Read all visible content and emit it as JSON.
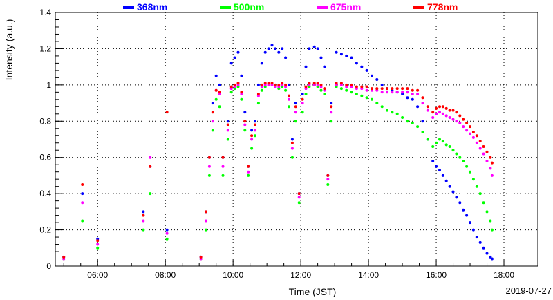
{
  "chart_data": {
    "type": "scatter",
    "title": "",
    "xlabel": "Time (JST)",
    "ylabel": "Intensity (a.u.)",
    "date": "2019-07-27",
    "x_unit": "hours (JST)",
    "xlim": [
      4.75,
      19.0
    ],
    "ylim": [
      0,
      1.4
    ],
    "grid": true,
    "legend_position": "top",
    "x_ticks": [
      6,
      8,
      10,
      12,
      14,
      16,
      18
    ],
    "x_tick_labels": [
      "06:00",
      "08:00",
      "10:00",
      "12:00",
      "14:00",
      "16:00",
      "18:00"
    ],
    "y_ticks": [
      0,
      0.2,
      0.4,
      0.6,
      0.8,
      1,
      1.2,
      1.4
    ],
    "y_tick_labels": [
      "0",
      "0.2",
      "0.4",
      "0.6",
      "0.8",
      "1",
      "1.2",
      "1.4"
    ],
    "series": [
      {
        "name": "368nm",
        "color": "#0000ff",
        "x": [
          5.0,
          5.55,
          6.0,
          7.35,
          7.55,
          8.05,
          9.05,
          9.2,
          9.3,
          9.4,
          9.5,
          9.6,
          9.7,
          9.85,
          9.95,
          10.05,
          10.15,
          10.25,
          10.35,
          10.45,
          10.55,
          10.65,
          10.75,
          10.85,
          10.95,
          11.05,
          11.15,
          11.25,
          11.35,
          11.45,
          11.55,
          11.65,
          11.75,
          11.85,
          11.95,
          12.05,
          12.15,
          12.25,
          12.4,
          12.5,
          12.6,
          12.7,
          12.8,
          12.9,
          13.05,
          13.2,
          13.35,
          13.5,
          13.65,
          13.8,
          13.95,
          14.1,
          14.25,
          14.4,
          14.55,
          14.7,
          14.85,
          15.0,
          15.15,
          15.3,
          15.45,
          15.6,
          15.75,
          15.9,
          16.0,
          16.1,
          16.2,
          16.3,
          16.4,
          16.5,
          16.6,
          16.7,
          16.8,
          16.9,
          17.0,
          17.1,
          17.2,
          17.3,
          17.4,
          17.5,
          17.6,
          17.65
        ],
        "values": [
          0.05,
          0.4,
          0.15,
          0.3,
          0.55,
          0.2,
          0.05,
          0.3,
          0.6,
          0.9,
          1.05,
          1.0,
          0.6,
          0.8,
          1.12,
          1.15,
          1.18,
          1.05,
          0.85,
          0.55,
          0.75,
          0.8,
          1.0,
          1.12,
          1.18,
          1.2,
          1.22,
          1.2,
          1.18,
          1.2,
          1.15,
          1.0,
          0.7,
          0.9,
          0.4,
          0.95,
          1.1,
          1.2,
          1.21,
          1.2,
          1.15,
          1.1,
          0.5,
          0.9,
          1.18,
          1.17,
          1.16,
          1.15,
          1.12,
          1.1,
          1.08,
          1.05,
          1.03,
          1.0,
          0.98,
          0.97,
          0.96,
          0.95,
          0.93,
          0.92,
          0.88,
          0.8,
          0.7,
          0.58,
          0.55,
          0.53,
          0.5,
          0.47,
          0.44,
          0.41,
          0.38,
          0.35,
          0.31,
          0.28,
          0.24,
          0.2,
          0.16,
          0.13,
          0.1,
          0.07,
          0.05,
          0.04
        ]
      },
      {
        "name": "500nm",
        "color": "#00ff00",
        "x": [
          5.0,
          5.55,
          6.0,
          7.35,
          7.55,
          8.05,
          9.05,
          9.2,
          9.3,
          9.4,
          9.5,
          9.6,
          9.7,
          9.85,
          9.95,
          10.05,
          10.15,
          10.25,
          10.35,
          10.45,
          10.55,
          10.65,
          10.75,
          10.85,
          10.95,
          11.05,
          11.15,
          11.25,
          11.35,
          11.45,
          11.55,
          11.65,
          11.75,
          11.85,
          11.95,
          12.05,
          12.15,
          12.25,
          12.4,
          12.5,
          12.6,
          12.7,
          12.8,
          12.9,
          13.05,
          13.2,
          13.35,
          13.5,
          13.65,
          13.8,
          13.95,
          14.1,
          14.25,
          14.4,
          14.55,
          14.7,
          14.85,
          15.0,
          15.15,
          15.3,
          15.45,
          15.6,
          15.75,
          15.9,
          16.0,
          16.1,
          16.2,
          16.3,
          16.4,
          16.5,
          16.6,
          16.7,
          16.8,
          16.9,
          17.0,
          17.1,
          17.2,
          17.3,
          17.4,
          17.5,
          17.6,
          17.65
        ],
        "values": [
          0.04,
          0.25,
          0.1,
          0.2,
          0.4,
          0.15,
          0.04,
          0.2,
          0.5,
          0.75,
          0.92,
          0.88,
          0.5,
          0.7,
          0.96,
          0.98,
          0.99,
          0.92,
          0.75,
          0.5,
          0.65,
          0.72,
          0.9,
          0.97,
          0.99,
          1.0,
          1.0,
          0.99,
          0.98,
          0.99,
          0.97,
          0.88,
          0.6,
          0.8,
          0.35,
          0.85,
          0.95,
          0.99,
          1.0,
          0.99,
          0.97,
          0.95,
          0.45,
          0.8,
          0.99,
          0.98,
          0.97,
          0.96,
          0.95,
          0.94,
          0.93,
          0.92,
          0.9,
          0.88,
          0.86,
          0.85,
          0.84,
          0.82,
          0.8,
          0.79,
          0.77,
          0.74,
          0.7,
          0.66,
          0.68,
          0.7,
          0.69,
          0.67,
          0.66,
          0.64,
          0.62,
          0.6,
          0.58,
          0.55,
          0.52,
          0.48,
          0.44,
          0.4,
          0.35,
          0.3,
          0.25,
          0.2
        ]
      },
      {
        "name": "675nm",
        "color": "#ff00ff",
        "x": [
          5.0,
          5.55,
          6.0,
          7.35,
          7.55,
          8.05,
          9.05,
          9.2,
          9.3,
          9.4,
          9.5,
          9.6,
          9.7,
          9.85,
          9.95,
          10.05,
          10.15,
          10.25,
          10.35,
          10.45,
          10.55,
          10.65,
          10.75,
          10.85,
          10.95,
          11.05,
          11.15,
          11.25,
          11.35,
          11.45,
          11.55,
          11.65,
          11.75,
          11.85,
          11.95,
          12.05,
          12.15,
          12.25,
          12.4,
          12.5,
          12.6,
          12.7,
          12.8,
          12.9,
          13.05,
          13.2,
          13.35,
          13.5,
          13.65,
          13.8,
          13.95,
          14.1,
          14.25,
          14.4,
          14.55,
          14.7,
          14.85,
          15.0,
          15.15,
          15.3,
          15.45,
          15.6,
          15.75,
          15.9,
          16.0,
          16.1,
          16.2,
          16.3,
          16.4,
          16.5,
          16.6,
          16.7,
          16.8,
          16.9,
          17.0,
          17.1,
          17.2,
          17.3,
          17.4,
          17.5,
          17.6,
          17.65
        ],
        "values": [
          0.04,
          0.35,
          0.12,
          0.25,
          0.6,
          0.18,
          0.04,
          0.25,
          0.55,
          0.8,
          0.97,
          0.95,
          0.55,
          0.75,
          0.98,
          0.99,
          1.0,
          0.95,
          0.78,
          0.52,
          0.7,
          0.75,
          0.94,
          0.99,
          1.0,
          1.0,
          1.0,
          0.99,
          0.99,
          1.0,
          0.99,
          0.92,
          0.65,
          0.85,
          0.38,
          0.9,
          0.98,
          1.0,
          1.0,
          1.0,
          0.99,
          0.97,
          0.48,
          0.85,
          1.0,
          1.0,
          0.99,
          0.99,
          0.98,
          0.98,
          0.97,
          0.97,
          0.97,
          0.96,
          0.96,
          0.96,
          0.96,
          0.96,
          0.96,
          0.95,
          0.95,
          0.9,
          0.86,
          0.82,
          0.84,
          0.85,
          0.84,
          0.83,
          0.82,
          0.81,
          0.8,
          0.79,
          0.77,
          0.75,
          0.73,
          0.71,
          0.68,
          0.65,
          0.62,
          0.58,
          0.54,
          0.5
        ]
      },
      {
        "name": "778nm",
        "color": "#ff0000",
        "x": [
          5.0,
          5.55,
          6.0,
          7.35,
          7.55,
          8.05,
          9.05,
          9.2,
          9.3,
          9.4,
          9.5,
          9.6,
          9.7,
          9.85,
          9.95,
          10.05,
          10.15,
          10.25,
          10.35,
          10.45,
          10.55,
          10.65,
          10.75,
          10.85,
          10.95,
          11.05,
          11.15,
          11.25,
          11.35,
          11.45,
          11.55,
          11.65,
          11.75,
          11.85,
          11.95,
          12.05,
          12.15,
          12.25,
          12.4,
          12.5,
          12.6,
          12.7,
          12.8,
          12.9,
          13.05,
          13.2,
          13.35,
          13.5,
          13.65,
          13.8,
          13.95,
          14.1,
          14.25,
          14.4,
          14.55,
          14.7,
          14.85,
          15.0,
          15.15,
          15.3,
          15.45,
          15.6,
          15.75,
          15.9,
          16.0,
          16.1,
          16.2,
          16.3,
          16.4,
          16.5,
          16.6,
          16.7,
          16.8,
          16.9,
          17.0,
          17.1,
          17.2,
          17.3,
          17.4,
          17.5,
          17.6,
          17.65
        ],
        "values": [
          0.05,
          0.45,
          0.14,
          0.28,
          0.55,
          0.85,
          0.05,
          0.3,
          0.6,
          0.85,
          0.97,
          0.96,
          0.6,
          0.78,
          0.99,
          1.0,
          1.01,
          0.96,
          0.8,
          0.55,
          0.72,
          0.78,
          0.95,
          1.0,
          1.01,
          1.01,
          1.01,
          1.0,
          1.0,
          1.01,
          1.0,
          0.94,
          0.68,
          0.88,
          0.4,
          0.92,
          0.99,
          1.01,
          1.01,
          1.01,
          1.0,
          0.98,
          0.5,
          0.88,
          1.01,
          1.01,
          1.0,
          1.0,
          0.99,
          0.99,
          0.99,
          0.98,
          0.98,
          0.98,
          0.98,
          0.98,
          0.98,
          0.98,
          0.98,
          0.97,
          0.97,
          0.93,
          0.88,
          0.85,
          0.87,
          0.88,
          0.88,
          0.87,
          0.86,
          0.86,
          0.85,
          0.83,
          0.81,
          0.79,
          0.77,
          0.74,
          0.72,
          0.69,
          0.66,
          0.63,
          0.6,
          0.57
        ]
      }
    ]
  }
}
